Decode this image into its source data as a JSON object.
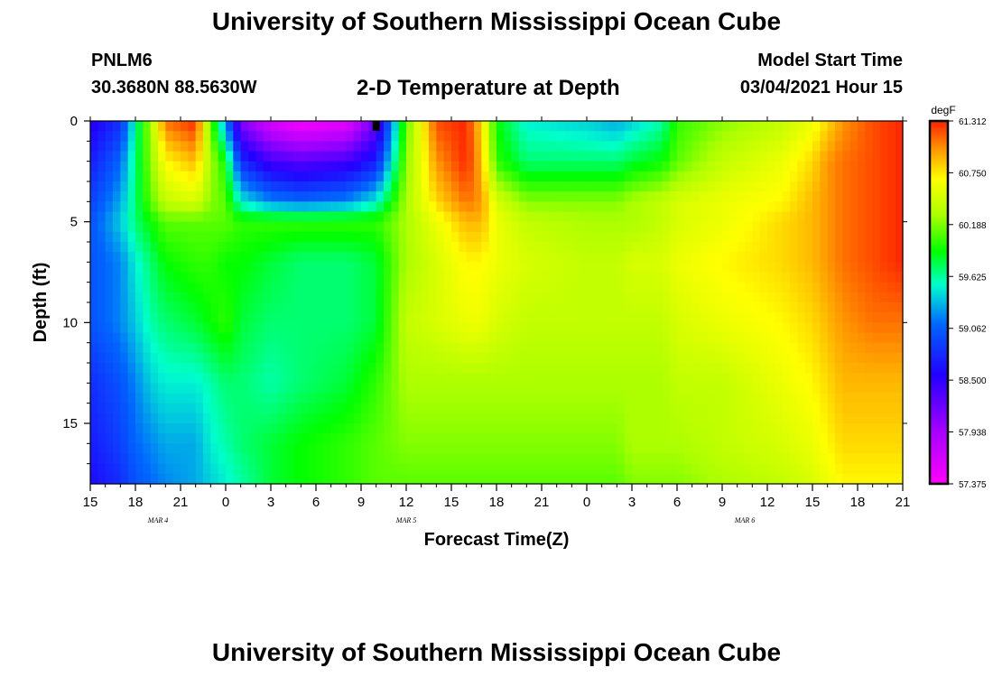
{
  "header": {
    "title": "University of Southern Mississippi Ocean Cube",
    "station": "PNLM6",
    "coords": "30.3680N 88.5630W",
    "plot_title": "2-D Temperature at Depth",
    "start_label": "Model Start Time",
    "start_value": "03/04/2021 Hour 15"
  },
  "footer": {
    "title": "University of Southern Mississippi Ocean Cube"
  },
  "chart_data": {
    "type": "heatmap",
    "title": "2-D Temperature at Depth",
    "xlabel": "Forecast Time(Z)",
    "ylabel": "Depth (ft)",
    "x_hours": [
      0,
      54
    ],
    "xlim": [
      0,
      54
    ],
    "ylim": [
      18,
      0
    ],
    "x_tick_labels": [
      "15",
      "18",
      "21",
      "0",
      "3",
      "6",
      "9",
      "12",
      "15",
      "18",
      "21",
      "0",
      "3",
      "6",
      "9",
      "12",
      "15",
      "18",
      "21"
    ],
    "date_labels": [
      {
        "label": "MAR 4",
        "hour": 4.5
      },
      {
        "label": "MAR 5",
        "hour": 21
      },
      {
        "label": "MAR 6",
        "hour": 43.5
      }
    ],
    "y_ticks": [
      0,
      5,
      10,
      15
    ],
    "colorbar": {
      "unit": "degF",
      "labels": [
        "61.312",
        "60.750",
        "60.188",
        "59.625",
        "59.062",
        "58.500",
        "57.938",
        "57.375"
      ],
      "min": 57.375,
      "max": 61.312
    },
    "temperature_field": {
      "depth_ft": [
        0,
        2,
        4,
        5,
        7,
        10,
        13,
        16,
        18
      ],
      "hours": [
        0,
        2,
        3,
        4,
        5,
        7,
        8,
        9,
        10,
        12,
        14,
        17,
        19,
        21,
        23,
        25,
        26,
        27,
        29,
        33,
        35,
        36,
        38,
        39,
        42,
        46,
        48,
        49,
        50,
        52,
        54
      ],
      "degF": [
        [
          58.5,
          58.8,
          59.6,
          60.3,
          61.1,
          61.3,
          60.1,
          59.2,
          58.1,
          57.6,
          57.4,
          57.5,
          58.2,
          60.1,
          61.2,
          61.3,
          60.8,
          59.9,
          59.5,
          59.4,
          59.3,
          59.4,
          59.6,
          60.0,
          60.2,
          60.4,
          60.6,
          60.8,
          61.0,
          61.2,
          61.3
        ],
        [
          58.7,
          59.1,
          59.7,
          60.2,
          60.7,
          60.9,
          60.3,
          59.9,
          58.8,
          58.4,
          58.3,
          58.4,
          58.7,
          60.2,
          61.0,
          61.3,
          60.9,
          60.0,
          59.7,
          59.7,
          59.7,
          59.8,
          59.9,
          60.1,
          60.4,
          60.6,
          60.8,
          61.0,
          61.1,
          61.2,
          61.3
        ],
        [
          58.9,
          59.3,
          59.7,
          60.1,
          60.4,
          60.5,
          60.2,
          60.1,
          59.5,
          59.2,
          59.1,
          59.2,
          59.5,
          60.3,
          60.8,
          61.1,
          61.0,
          60.5,
          60.2,
          60.2,
          60.2,
          60.3,
          60.4,
          60.5,
          60.6,
          60.7,
          60.9,
          61.0,
          61.1,
          61.2,
          61.3
        ],
        [
          59.0,
          59.4,
          59.7,
          59.9,
          60.1,
          60.1,
          60.1,
          60.1,
          60.0,
          60.0,
          60.0,
          60.0,
          60.0,
          60.3,
          60.6,
          60.9,
          60.9,
          60.6,
          60.4,
          60.3,
          60.3,
          60.3,
          60.4,
          60.5,
          60.6,
          60.8,
          60.9,
          61.0,
          61.1,
          61.2,
          61.3
        ],
        [
          59.0,
          59.2,
          59.5,
          59.7,
          59.9,
          60.0,
          60.0,
          59.9,
          59.9,
          59.8,
          59.7,
          59.7,
          59.8,
          60.3,
          60.5,
          60.7,
          60.7,
          60.6,
          60.5,
          60.4,
          60.4,
          60.5,
          60.5,
          60.6,
          60.7,
          60.8,
          60.9,
          61.0,
          61.1,
          61.2,
          61.3
        ],
        [
          59.0,
          59.2,
          59.4,
          59.6,
          59.7,
          59.8,
          59.9,
          60.0,
          59.8,
          59.7,
          59.7,
          59.7,
          59.8,
          60.4,
          60.5,
          60.6,
          60.6,
          60.5,
          60.4,
          60.4,
          60.4,
          60.4,
          60.4,
          60.5,
          60.6,
          60.7,
          60.8,
          60.9,
          61.0,
          61.1,
          61.1
        ],
        [
          58.8,
          59.0,
          59.2,
          59.4,
          59.5,
          59.5,
          59.6,
          59.7,
          59.7,
          59.6,
          59.7,
          59.8,
          60.0,
          60.3,
          60.3,
          60.3,
          60.3,
          60.3,
          60.3,
          60.3,
          60.3,
          60.3,
          60.3,
          60.4,
          60.4,
          60.6,
          60.7,
          60.8,
          60.9,
          60.9,
          60.9
        ],
        [
          58.7,
          58.9,
          59.1,
          59.2,
          59.3,
          59.3,
          59.5,
          59.6,
          59.7,
          59.8,
          59.9,
          60.0,
          60.1,
          60.2,
          60.2,
          60.2,
          60.2,
          60.2,
          60.2,
          60.2,
          60.2,
          60.3,
          60.3,
          60.3,
          60.4,
          60.5,
          60.6,
          60.7,
          60.8,
          60.8,
          60.8
        ],
        [
          58.6,
          58.8,
          59.0,
          59.1,
          59.2,
          59.3,
          59.4,
          59.5,
          59.6,
          59.8,
          59.9,
          60.0,
          60.1,
          60.1,
          60.1,
          60.1,
          60.1,
          60.1,
          60.1,
          60.1,
          60.1,
          60.2,
          60.2,
          60.2,
          60.3,
          60.4,
          60.5,
          60.6,
          60.7,
          60.7,
          60.7
        ]
      ]
    }
  }
}
